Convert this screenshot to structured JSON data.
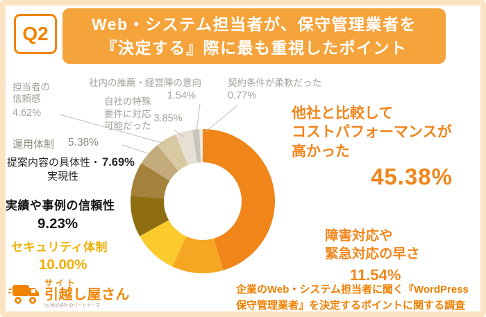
{
  "header": {
    "q_label": "Q2",
    "title_line1": "Web・システム担当者が、保守管理業者を",
    "title_line2": "『決定する』際に最も重視したポイント"
  },
  "chart_data": {
    "type": "pie",
    "donut": true,
    "title": "Web・システム担当者が、保守管理業者を『決定する』際に最も重視したポイント",
    "unit": "%",
    "start_angle_deg": 0,
    "direction": "clockwise",
    "segments": [
      {
        "label": "他社と比較してコストパフォーマンスが高かった",
        "value": 45.38,
        "color": "#F08519"
      },
      {
        "label": "障害対応や緊急対応の早さ",
        "value": 11.54,
        "color": "#F6A623"
      },
      {
        "label": "セキュリティ体制",
        "value": 10.0,
        "color": "#FBCB2D"
      },
      {
        "label": "実績や事例の信頼性",
        "value": 9.23,
        "color": "#8F6E12"
      },
      {
        "label": "提案内容の具体性・実現性",
        "value": 7.69,
        "color": "#A5823B"
      },
      {
        "label": "運用体制",
        "value": 5.38,
        "color": "#C3AB7C"
      },
      {
        "label": "担当者の信頼感",
        "value": 4.62,
        "color": "#D9C9A3"
      },
      {
        "label": "自社の特殊要件に対応可能だった",
        "value": 3.85,
        "color": "#E6E0D4"
      },
      {
        "label": "社内の推薦・経営陣の意向",
        "value": 1.54,
        "color": "#C9C4BA"
      },
      {
        "label": "契約条件が柔軟だった",
        "value": 0.77,
        "color": "#EDE9E1"
      }
    ]
  },
  "callouts": {
    "tantosha": {
      "line1": "担当者の",
      "line2": "信頼感",
      "pct": "4.62%"
    },
    "shanai": {
      "text": "社内の推薦・経営陣の意向",
      "pct": "1.54%"
    },
    "keiyaku": {
      "text": "契約条件が柔軟だった",
      "pct": "0.77%"
    },
    "jisha": {
      "line1": "自社の特殊",
      "line2": "要件に対応",
      "line3": "可能だった",
      "pct": "3.85%"
    },
    "unyo": {
      "text": "運用体制",
      "pct": "5.38%"
    },
    "teian": {
      "line1": "提案内容の具体性・",
      "line2": "実現性",
      "pct": "7.69%"
    },
    "jisseki": {
      "text": "実績や事例の信頼性",
      "pct": "9.23%"
    },
    "security": {
      "text": "セキュリティ体制",
      "pct": "10.00%"
    },
    "tasha": {
      "line1": "他社と比較して",
      "line2": "コストパフォーマンスが",
      "line3": "高かった",
      "pct": "45.38%"
    },
    "shogai": {
      "line1": "障害対応や",
      "line2": "緊急対応の早さ",
      "pct": "11.54%"
    }
  },
  "footer": {
    "note_line1": "企業のWeb・システム担当者に聞く『WordPress",
    "note_line2": "保守管理業者』を決定するポイントに関する調査"
  },
  "logo": {
    "top": "サイト",
    "main": "引越し屋さん",
    "sub": "by 株式会社IDパートナーズ"
  },
  "colors": {
    "accent": "#F08402",
    "title_bg": "#F5A33B",
    "frame": "#FBE3C3"
  }
}
